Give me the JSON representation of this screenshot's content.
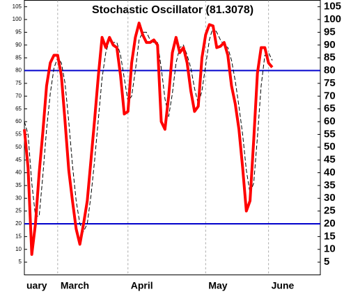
{
  "chart_data": {
    "type": "line",
    "title": "Stochastic Oscillator (81.3078)",
    "xlim": [
      0,
      80
    ],
    "xticks": [
      {
        "value": -1,
        "label": "uary"
      },
      {
        "value": 9,
        "label": "March"
      },
      {
        "value": 28,
        "label": "April"
      },
      {
        "value": 49,
        "label": "May"
      },
      {
        "value": 66,
        "label": "June"
      }
    ],
    "ylim": [
      0,
      107.5
    ],
    "yticks": [
      5,
      10,
      15,
      20,
      25,
      30,
      35,
      40,
      45,
      50,
      55,
      60,
      65,
      70,
      75,
      80,
      85,
      90,
      95,
      100,
      105
    ],
    "hlines": [
      {
        "value": 80,
        "color": "#0000cc"
      },
      {
        "value": 20,
        "color": "#0000cc"
      }
    ],
    "series": [
      {
        "color": "#000000",
        "dashed": true,
        "width": 1,
        "values": [
          60,
          55,
          36,
          23,
          23,
          39,
          57,
          71,
          81,
          85,
          83,
          75,
          60,
          43,
          29,
          20,
          17,
          20,
          31,
          45,
          61,
          77,
          87,
          92,
          91,
          91,
          86,
          77,
          68,
          70,
          80,
          92,
          95,
          95,
          92,
          91,
          91,
          81,
          69,
          62,
          71,
          83,
          89,
          90,
          86,
          81,
          73,
          67,
          72,
          82,
          92,
          97,
          95,
          92,
          90,
          89,
          84,
          76,
          66,
          55,
          41,
          32,
          36,
          54,
          74,
          86,
          87,
          84
        ]
      },
      {
        "color": "#ff0000",
        "dashed": false,
        "width": 4,
        "values": [
          57,
          42,
          8,
          20,
          40,
          56,
          74,
          83,
          86,
          86,
          78,
          60,
          41,
          29,
          18,
          12,
          20,
          29,
          45,
          61,
          78,
          93,
          89,
          93,
          90,
          89,
          78,
          63,
          64,
          83,
          93,
          98.6,
          94,
          91,
          91,
          92,
          90,
          60,
          57,
          70,
          87,
          93,
          87,
          89,
          83,
          72,
          64,
          66,
          85,
          94,
          98,
          97.5,
          89,
          89.5,
          91,
          86,
          74,
          67,
          57,
          42,
          25,
          29,
          53,
          79,
          89,
          89,
          83,
          81.3
        ]
      }
    ]
  }
}
